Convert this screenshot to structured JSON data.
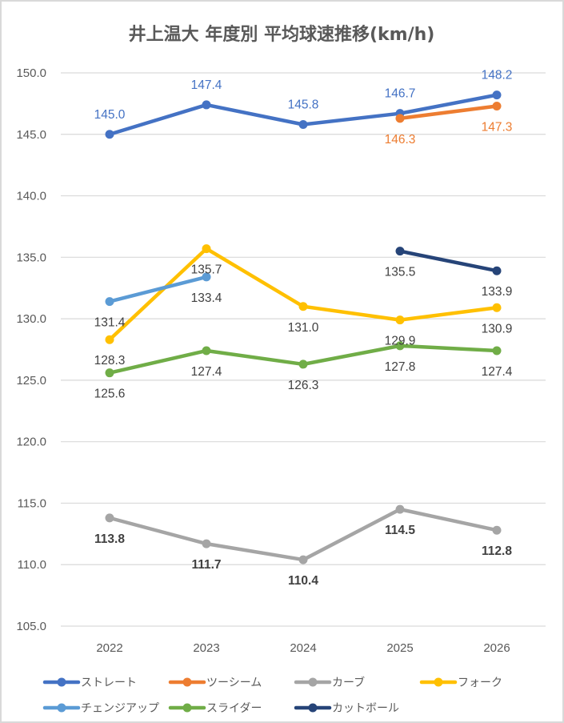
{
  "chart_data": {
    "type": "line",
    "title": "井上温大 年度別 平均球速推移(km/h)",
    "xlabel": "",
    "ylabel": "",
    "categories": [
      "2022",
      "2023",
      "2024",
      "2025",
      "2026"
    ],
    "ylim": [
      105.0,
      150.0
    ],
    "yticks": [
      "150.0",
      "145.0",
      "140.0",
      "135.0",
      "130.0",
      "125.0",
      "120.0",
      "115.0",
      "110.0",
      "105.0"
    ],
    "grid": true,
    "legend_position": "bottom",
    "series": [
      {
        "name": "ストレート",
        "color": "#4472C4",
        "label_color": "#4472C4",
        "label_pos": "above",
        "label_bold": false,
        "values": [
          145.0,
          147.4,
          145.8,
          146.7,
          148.2
        ]
      },
      {
        "name": "ツーシーム",
        "color": "#ED7D31",
        "label_color": "#ED7D31",
        "label_pos": "below",
        "label_bold": false,
        "values": [
          null,
          null,
          null,
          146.3,
          147.3
        ]
      },
      {
        "name": "カーブ",
        "color": "#A5A5A5",
        "label_color": "#404040",
        "label_pos": "below",
        "label_bold": true,
        "values": [
          113.8,
          111.7,
          110.4,
          114.5,
          112.8
        ]
      },
      {
        "name": "フォーク",
        "color": "#FFC000",
        "label_color": "#404040",
        "label_pos": "below",
        "label_bold": false,
        "values": [
          128.3,
          135.7,
          131.0,
          129.9,
          130.9
        ]
      },
      {
        "name": "チェンジアップ",
        "color": "#5B9BD5",
        "label_color": "#404040",
        "label_pos": "below",
        "label_bold": false,
        "values": [
          131.4,
          133.4,
          null,
          null,
          null
        ]
      },
      {
        "name": "スライダー",
        "color": "#70AD47",
        "label_color": "#404040",
        "label_pos": "below",
        "label_bold": false,
        "values": [
          125.6,
          127.4,
          126.3,
          127.8,
          127.4
        ]
      },
      {
        "name": "カットボール",
        "color": "#264478",
        "label_color": "#404040",
        "label_pos": "below",
        "label_bold": false,
        "values": [
          null,
          null,
          null,
          135.5,
          133.9
        ]
      }
    ]
  }
}
